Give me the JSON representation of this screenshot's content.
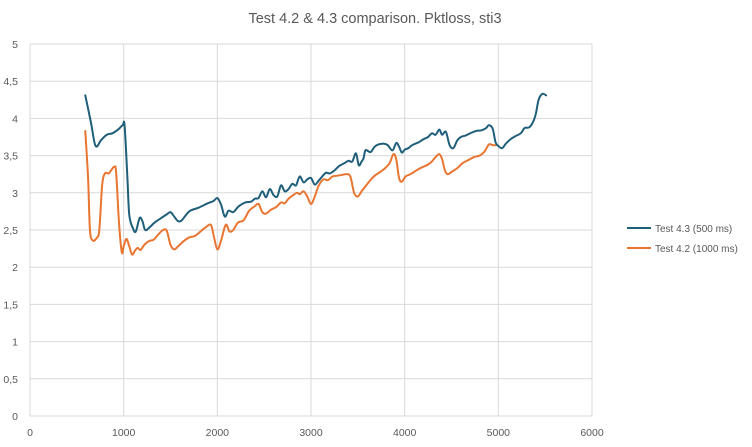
{
  "chart_data": {
    "type": "line",
    "title": "Test 4.2 & 4.3 comparison. Pktloss, sti3",
    "xlabel": "",
    "ylabel": "",
    "xlim": [
      0,
      6000
    ],
    "ylim": [
      0,
      5
    ],
    "x_ticks": [
      0,
      1000,
      2000,
      3000,
      4000,
      5000,
      6000
    ],
    "x_tick_labels": [
      "0",
      "1000",
      "2000",
      "3000",
      "4000",
      "5000",
      "6000"
    ],
    "y_ticks": [
      0,
      0.5,
      1,
      1.5,
      2,
      2.5,
      3,
      3.5,
      4,
      4.5,
      5
    ],
    "y_tick_labels": [
      "0",
      "0,5",
      "1",
      "1,5",
      "2",
      "2,5",
      "3",
      "3,5",
      "4",
      "4,5",
      "5"
    ],
    "grid": "both",
    "legend_position": "right",
    "series": [
      {
        "name": "Test 4.3 (500 ms)",
        "color": "#1f5f7a",
        "points": [
          [
            590,
            4.31
          ],
          [
            650,
            3.95
          ],
          [
            700,
            3.63
          ],
          [
            760,
            3.71
          ],
          [
            820,
            3.78
          ],
          [
            880,
            3.8
          ],
          [
            940,
            3.85
          ],
          [
            990,
            3.91
          ],
          [
            1010,
            3.9
          ],
          [
            1040,
            3.2
          ],
          [
            1060,
            2.7
          ],
          [
            1100,
            2.52
          ],
          [
            1130,
            2.48
          ],
          [
            1170,
            2.66
          ],
          [
            1200,
            2.62
          ],
          [
            1230,
            2.5
          ],
          [
            1280,
            2.54
          ],
          [
            1330,
            2.6
          ],
          [
            1400,
            2.66
          ],
          [
            1460,
            2.71
          ],
          [
            1500,
            2.74
          ],
          [
            1540,
            2.68
          ],
          [
            1580,
            2.62
          ],
          [
            1620,
            2.63
          ],
          [
            1700,
            2.75
          ],
          [
            1800,
            2.8
          ],
          [
            1900,
            2.86
          ],
          [
            1960,
            2.89
          ],
          [
            2000,
            2.93
          ],
          [
            2040,
            2.84
          ],
          [
            2080,
            2.68
          ],
          [
            2120,
            2.76
          ],
          [
            2170,
            2.74
          ],
          [
            2230,
            2.82
          ],
          [
            2300,
            2.87
          ],
          [
            2360,
            2.88
          ],
          [
            2400,
            2.92
          ],
          [
            2440,
            2.93
          ],
          [
            2480,
            3.02
          ],
          [
            2520,
            2.94
          ],
          [
            2560,
            3.05
          ],
          [
            2600,
            2.97
          ],
          [
            2640,
            2.95
          ],
          [
            2680,
            3.1
          ],
          [
            2720,
            3.02
          ],
          [
            2760,
            3.05
          ],
          [
            2800,
            3.12
          ],
          [
            2840,
            3.1
          ],
          [
            2880,
            3.22
          ],
          [
            2920,
            3.14
          ],
          [
            2960,
            3.18
          ],
          [
            3000,
            3.2
          ],
          [
            3040,
            3.11
          ],
          [
            3080,
            3.16
          ],
          [
            3120,
            3.22
          ],
          [
            3160,
            3.27
          ],
          [
            3200,
            3.26
          ],
          [
            3250,
            3.3
          ],
          [
            3300,
            3.36
          ],
          [
            3360,
            3.4
          ],
          [
            3400,
            3.43
          ],
          [
            3440,
            3.42
          ],
          [
            3480,
            3.53
          ],
          [
            3510,
            3.37
          ],
          [
            3540,
            3.42
          ],
          [
            3560,
            3.46
          ],
          [
            3580,
            3.57
          ],
          [
            3610,
            3.56
          ],
          [
            3640,
            3.55
          ],
          [
            3680,
            3.62
          ],
          [
            3720,
            3.65
          ],
          [
            3780,
            3.66
          ],
          [
            3820,
            3.64
          ],
          [
            3870,
            3.57
          ],
          [
            3910,
            3.67
          ],
          [
            3940,
            3.62
          ],
          [
            3970,
            3.54
          ],
          [
            4000,
            3.58
          ],
          [
            4040,
            3.6
          ],
          [
            4080,
            3.64
          ],
          [
            4150,
            3.68
          ],
          [
            4200,
            3.72
          ],
          [
            4250,
            3.75
          ],
          [
            4290,
            3.8
          ],
          [
            4330,
            3.78
          ],
          [
            4370,
            3.85
          ],
          [
            4400,
            3.78
          ],
          [
            4440,
            3.82
          ],
          [
            4480,
            3.64
          ],
          [
            4520,
            3.6
          ],
          [
            4560,
            3.7
          ],
          [
            4600,
            3.75
          ],
          [
            4650,
            3.77
          ],
          [
            4700,
            3.8
          ],
          [
            4760,
            3.83
          ],
          [
            4820,
            3.84
          ],
          [
            4870,
            3.87
          ],
          [
            4900,
            3.91
          ],
          [
            4940,
            3.86
          ],
          [
            4970,
            3.68
          ],
          [
            5000,
            3.63
          ],
          [
            5040,
            3.6
          ],
          [
            5080,
            3.66
          ],
          [
            5130,
            3.72
          ],
          [
            5180,
            3.76
          ],
          [
            5240,
            3.8
          ],
          [
            5280,
            3.87
          ],
          [
            5330,
            3.88
          ],
          [
            5370,
            3.95
          ],
          [
            5400,
            4.06
          ],
          [
            5430,
            4.25
          ],
          [
            5470,
            4.33
          ],
          [
            5510,
            4.31
          ]
        ]
      },
      {
        "name": "Test 4.2 (1000 ms)",
        "color": "#e87530",
        "points": [
          [
            590,
            3.83
          ],
          [
            620,
            3.2
          ],
          [
            640,
            2.5
          ],
          [
            670,
            2.36
          ],
          [
            710,
            2.39
          ],
          [
            740,
            2.5
          ],
          [
            770,
            3.1
          ],
          [
            800,
            3.26
          ],
          [
            840,
            3.26
          ],
          [
            870,
            3.31
          ],
          [
            900,
            3.35
          ],
          [
            920,
            3.27
          ],
          [
            950,
            2.6
          ],
          [
            980,
            2.2
          ],
          [
            1000,
            2.28
          ],
          [
            1030,
            2.38
          ],
          [
            1060,
            2.28
          ],
          [
            1090,
            2.17
          ],
          [
            1120,
            2.22
          ],
          [
            1150,
            2.26
          ],
          [
            1180,
            2.23
          ],
          [
            1220,
            2.3
          ],
          [
            1270,
            2.35
          ],
          [
            1320,
            2.37
          ],
          [
            1370,
            2.44
          ],
          [
            1420,
            2.5
          ],
          [
            1460,
            2.49
          ],
          [
            1500,
            2.3
          ],
          [
            1540,
            2.24
          ],
          [
            1580,
            2.28
          ],
          [
            1640,
            2.35
          ],
          [
            1700,
            2.4
          ],
          [
            1760,
            2.42
          ],
          [
            1820,
            2.48
          ],
          [
            1870,
            2.53
          ],
          [
            1930,
            2.57
          ],
          [
            1960,
            2.43
          ],
          [
            2000,
            2.24
          ],
          [
            2040,
            2.36
          ],
          [
            2090,
            2.57
          ],
          [
            2130,
            2.48
          ],
          [
            2170,
            2.5
          ],
          [
            2220,
            2.6
          ],
          [
            2280,
            2.63
          ],
          [
            2340,
            2.76
          ],
          [
            2400,
            2.82
          ],
          [
            2440,
            2.85
          ],
          [
            2480,
            2.74
          ],
          [
            2520,
            2.72
          ],
          [
            2570,
            2.77
          ],
          [
            2630,
            2.81
          ],
          [
            2680,
            2.87
          ],
          [
            2720,
            2.86
          ],
          [
            2760,
            2.92
          ],
          [
            2800,
            2.96
          ],
          [
            2850,
            3.0
          ],
          [
            2880,
            2.98
          ],
          [
            2920,
            3.02
          ],
          [
            2960,
            2.95
          ],
          [
            3000,
            2.85
          ],
          [
            3040,
            2.95
          ],
          [
            3080,
            3.09
          ],
          [
            3130,
            3.18
          ],
          [
            3180,
            3.17
          ],
          [
            3230,
            3.22
          ],
          [
            3280,
            3.23
          ],
          [
            3330,
            3.24
          ],
          [
            3380,
            3.25
          ],
          [
            3420,
            3.22
          ],
          [
            3460,
            3.0
          ],
          [
            3500,
            2.95
          ],
          [
            3540,
            3.02
          ],
          [
            3590,
            3.1
          ],
          [
            3640,
            3.18
          ],
          [
            3690,
            3.24
          ],
          [
            3740,
            3.28
          ],
          [
            3790,
            3.33
          ],
          [
            3840,
            3.4
          ],
          [
            3880,
            3.52
          ],
          [
            3910,
            3.45
          ],
          [
            3940,
            3.2
          ],
          [
            3970,
            3.15
          ],
          [
            4010,
            3.22
          ],
          [
            4060,
            3.25
          ],
          [
            4100,
            3.28
          ],
          [
            4150,
            3.32
          ],
          [
            4200,
            3.35
          ],
          [
            4250,
            3.38
          ],
          [
            4290,
            3.42
          ],
          [
            4330,
            3.48
          ],
          [
            4370,
            3.52
          ],
          [
            4400,
            3.45
          ],
          [
            4430,
            3.3
          ],
          [
            4460,
            3.25
          ],
          [
            4500,
            3.28
          ],
          [
            4560,
            3.33
          ],
          [
            4620,
            3.4
          ],
          [
            4680,
            3.44
          ],
          [
            4740,
            3.48
          ],
          [
            4800,
            3.5
          ],
          [
            4850,
            3.55
          ],
          [
            4900,
            3.65
          ],
          [
            4940,
            3.64
          ],
          [
            4980,
            3.64
          ]
        ]
      }
    ]
  }
}
